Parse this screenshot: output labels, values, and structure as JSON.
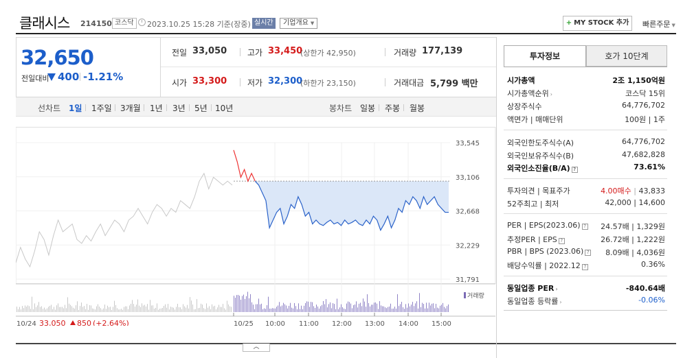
{
  "header": {
    "company": "클래시스",
    "code": "214150",
    "market": "코스닥",
    "datetime": "2023.10.25 15:28 기준(장중)",
    "realtime_badge": "실시간",
    "overview_btn": "기업개요",
    "mystock_btn": "MY STOCK 추가",
    "quick_order": "빠른주문"
  },
  "price": {
    "current": "32,650",
    "vs_label": "전일대비",
    "change": "400",
    "change_pct": "-1.21%",
    "direction": "down"
  },
  "stats": {
    "prev_label": "전일",
    "prev": "33,050",
    "high_label": "고가",
    "high": "33,450",
    "upper_limit": "(상한가 42,950)",
    "volume_label": "거래량",
    "volume": "177,139",
    "open_label": "시가",
    "open": "33,300",
    "low_label": "저가",
    "low": "32,300",
    "lower_limit": "(하한가 23,150)",
    "amount_label": "거래대금",
    "amount": "5,799 백만"
  },
  "period_bar": {
    "line_label": "선차트",
    "line_periods": [
      "1일",
      "1주일",
      "3개월",
      "1년",
      "3년",
      "5년",
      "10년"
    ],
    "selected": "1일",
    "candle_label": "봉차트",
    "candle_periods": [
      "일봉",
      "주봉",
      "월봉"
    ]
  },
  "chart_data": {
    "type": "line",
    "y_ticks": [
      "33,545",
      "33,106",
      "32,668",
      "32,229",
      "31,791"
    ],
    "ylim": [
      31791,
      33545
    ],
    "x_ticks": [
      "10/25",
      "10:00",
      "11:00",
      "12:00",
      "13:00",
      "14:00",
      "15:00"
    ],
    "baseline": 33050,
    "legend": "거래량",
    "prev_day_label": "10/24",
    "prev_day_close": "33,050",
    "prev_day_change": "850",
    "prev_day_pct": "(+2.64%)",
    "series": [
      {
        "name": "prev",
        "values": [
          32000,
          32200,
          32050,
          31950,
          32150,
          32400,
          32300,
          32100,
          32350,
          32550,
          32400,
          32450,
          32500,
          32300,
          32250,
          32350,
          32280,
          32400,
          32500,
          32350,
          32450,
          32550,
          32500,
          32400,
          32550,
          32600,
          32700,
          32600,
          32500,
          32650,
          32750,
          32700,
          32600,
          32700,
          32650,
          32800,
          32750,
          32700,
          32850,
          33050,
          33150,
          32950,
          33100,
          33050,
          33000,
          33050,
          33000
        ]
      },
      {
        "name": "today",
        "values": [
          33450,
          33300,
          33100,
          33200,
          33050,
          33150,
          33050,
          33000,
          32900,
          32800,
          32450,
          32550,
          32650,
          32700,
          32500,
          32600,
          32750,
          32700,
          32850,
          32750,
          32600,
          32650,
          32500,
          32550,
          32500,
          32480,
          32520,
          32550,
          32500,
          32520,
          32480,
          32550,
          32500,
          32520,
          32550,
          32500,
          32480,
          32550,
          32500,
          32600,
          32550,
          32420,
          32500,
          32600,
          32450,
          32550,
          32700,
          32650,
          32800,
          32750,
          32850,
          32800,
          32700,
          32850,
          32750,
          32800,
          32850,
          32750,
          32700,
          32650,
          32650
        ]
      }
    ]
  },
  "right_panel": {
    "tab_invest": "투자정보",
    "tab_hoga": "호가 10단계",
    "rows1": [
      {
        "label": "시가총액",
        "value": "2조 1,150억원"
      },
      {
        "label": "시가총액순위",
        "value": "코스닥 15위"
      },
      {
        "label": "상장주식수",
        "value": "64,776,702"
      },
      {
        "label": "액면가 | 매매단위",
        "value": "100원 | 1주"
      }
    ],
    "rows2": [
      {
        "label": "외국인한도주식수(A)",
        "value": "64,776,702"
      },
      {
        "label": "외국인보유주식수(B)",
        "value": "47,682,828"
      },
      {
        "label": "외국인소진율(B/A)",
        "value": "73.61%"
      }
    ],
    "rows3": [
      {
        "label": "투자의견 | 목표주가",
        "value_red": "4.00매수",
        "value": "43,833"
      },
      {
        "label": "52주최고 | 최저",
        "value": "42,000 | 14,600"
      }
    ],
    "rows4": [
      {
        "label": "PER | EPS(2023.06)",
        "value": "24.57배 | 1,329원"
      },
      {
        "label": "추정PER | EPS",
        "value": "26.72배 | 1,222원"
      },
      {
        "label": "PBR | BPS (2023.06)",
        "value": "8.09배 | 4,036원"
      },
      {
        "label": "배당수익률 | 2022.12",
        "value": "0.36%"
      }
    ],
    "rows5": [
      {
        "label": "동일업종 PER",
        "value": "-840.64배"
      },
      {
        "label": "동일업종 등락률",
        "value": "-0.06%"
      }
    ]
  }
}
